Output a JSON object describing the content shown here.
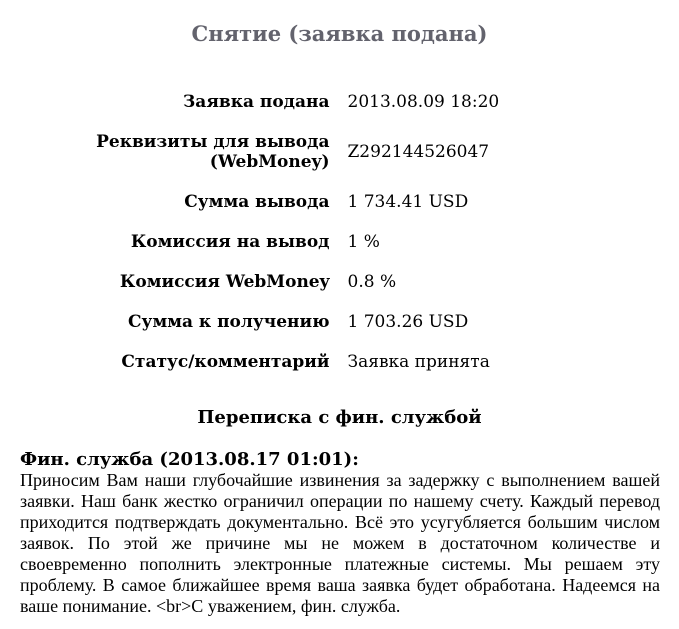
{
  "page": {
    "title": "Снятие (заявка подана)"
  },
  "details": {
    "rows": [
      {
        "label": "Заявка подана",
        "value": "2013.08.09 18:20"
      },
      {
        "label": "Реквизиты для вывода\n(WebMoney)",
        "value": "Z292144526047"
      },
      {
        "label": "Сумма вывода",
        "value": "1 734.41 USD"
      },
      {
        "label": "Комиссия на вывод",
        "value": "1 %"
      },
      {
        "label": "Комиссия WebMoney",
        "value": "0.8 %"
      },
      {
        "label": "Сумма к получению",
        "value": "1 703.26 USD"
      },
      {
        "label": "Статус/комментарий",
        "value": "Заявка принята"
      }
    ]
  },
  "correspondence": {
    "title": "Переписка с фин. службой",
    "messages": [
      {
        "author_line": "Фин. служба (2013.08.17 01:01):",
        "body": "Приносим Вам наши глубочайшие извинения за задержку с выполнением вашей заявки. Наш банк жестко ограничил операции по нашему счету. Каждый перевод приходится подтверждать документально. Всё это усугубляется большим числом заявок. По этой же причине мы не можем в достаточном количестве и своевременно пополнить электронные платежные системы. Мы решаем эту проблему. В самое ближайшее время ваша заявка будет обработана. Надеемся на ваше понимание. <br>С уважением, фин. служба."
      }
    ]
  },
  "colors": {
    "background": "#ffffff",
    "title_text": "#63636d",
    "body_text": "#000000"
  }
}
